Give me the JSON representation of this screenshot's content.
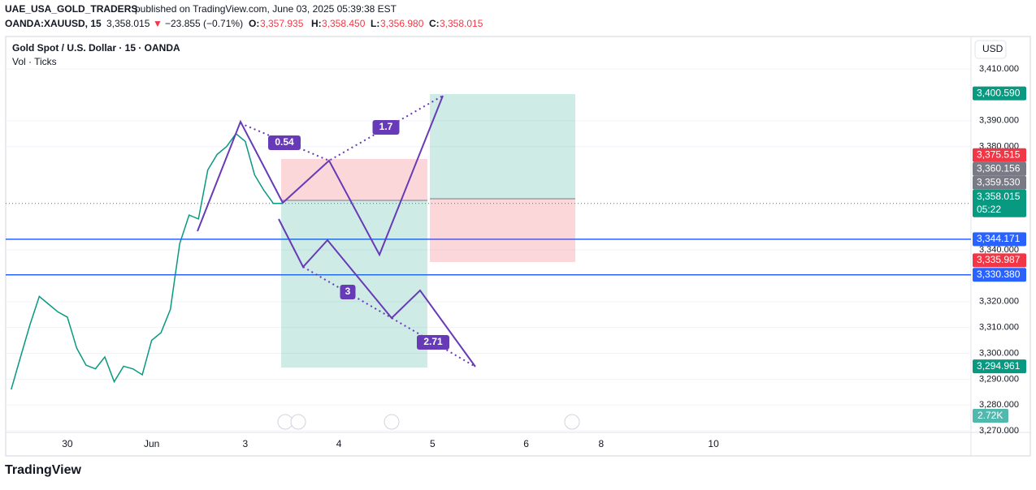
{
  "header": {
    "publisher": "UAE_USA_GOLD_TRADERS",
    "published": "published on TradingView.com, June 03, 2025 05:39:38 EST",
    "symbol": "OANDA:XAUUSD, 15",
    "last": "3,358.015",
    "arrow": "▼",
    "change": "−23.855 (−0.71%)",
    "o_key": "O:",
    "o": "3,357.935",
    "h_key": "H:",
    "h": "3,358.450",
    "l_key": "L:",
    "l": "3,356.980",
    "c_key": "C:",
    "c": "3,358.015"
  },
  "chart_data": {
    "type": "line",
    "title": "Gold Spot / U.S. Dollar · 15 · OANDA",
    "subtitle": "Vol · Ticks",
    "currency": "USD",
    "categories": [
      null,
      null,
      null,
      null,
      null,
      null,
      "30",
      null,
      null,
      null,
      null,
      null,
      null,
      null,
      null,
      "Jun",
      null,
      null,
      null,
      null,
      null,
      null,
      null,
      null,
      null,
      "3",
      null,
      null,
      null,
      null,
      null,
      null,
      null,
      null,
      null,
      "4",
      null,
      null,
      null,
      null,
      null,
      null,
      null,
      null,
      null,
      "5",
      null,
      null,
      null,
      null,
      null,
      null,
      null,
      null,
      null,
      "6",
      null,
      null,
      null,
      null,
      null,
      null,
      null,
      "8",
      null,
      null,
      null,
      null,
      null,
      null,
      null,
      null,
      null,
      null,
      null,
      "10",
      null,
      null,
      null,
      null,
      null,
      null,
      null,
      null,
      null,
      null,
      null,
      null,
      null,
      null,
      null,
      null,
      null,
      null,
      null,
      null,
      null,
      null,
      null,
      null,
      null,
      null,
      null
    ],
    "series": [
      {
        "name": "XAUUSD",
        "color": "#089981",
        "values": [
          3286,
          3298.6,
          3311,
          3322,
          3319,
          3316,
          3314,
          3302,
          3295.4,
          3294,
          3298.6,
          3289,
          3295,
          3294,
          3291.7,
          3305,
          3308,
          3317,
          3342.5,
          3353.5,
          3352,
          3371,
          3377,
          3380,
          3385,
          3382,
          3369,
          3363,
          3358,
          3358.015,
          null,
          null,
          null,
          null,
          null,
          null,
          null,
          null,
          null,
          null,
          null,
          null,
          null,
          null,
          null,
          null,
          null,
          null,
          null,
          null,
          null,
          null,
          null,
          null,
          null,
          null,
          null,
          null,
          null,
          null,
          null,
          null,
          null,
          null,
          null,
          null,
          null,
          null,
          null,
          null,
          null,
          null,
          null,
          null,
          null,
          null,
          null,
          null,
          null,
          null,
          null,
          null,
          null,
          null,
          null,
          null,
          null,
          null,
          null,
          null,
          null,
          null,
          null,
          null,
          null,
          null,
          null,
          null,
          null,
          null,
          null,
          null,
          null
        ]
      }
    ],
    "ylim": [
      3269.4,
      3422.6
    ],
    "yticks": [
      {
        "value": 3410,
        "label": "3,410.000"
      },
      {
        "value": 3390,
        "label": "3,390.000"
      },
      {
        "value": 3380,
        "label": "3,380.000"
      },
      {
        "value": 3340,
        "label": "3,340.000"
      },
      {
        "value": 3320,
        "label": "3,320.000"
      },
      {
        "value": 3310,
        "label": "3,310.000"
      },
      {
        "value": 3300,
        "label": "3,300.000"
      },
      {
        "value": 3290,
        "label": "3,290.000"
      },
      {
        "value": 3280,
        "label": "3,280.000"
      },
      {
        "value": 3270,
        "label": "3,270.000"
      }
    ],
    "grid": true,
    "annotations": [
      {
        "value": 3400.59,
        "label": "3,400.590",
        "color": "#089981"
      },
      {
        "value": 3375.515,
        "label": "3,375.515",
        "color": "#f23645"
      },
      {
        "value": 3360.156,
        "label": "3,360.156",
        "color": "#787b86"
      },
      {
        "value": 3359.53,
        "label": "3,359.530",
        "color": "#787b86"
      },
      {
        "value": 3358.015,
        "label": "3,358.015",
        "sublabel": "05:22",
        "color": "#089981",
        "style": "dotted"
      },
      {
        "value": 3344.171,
        "label": "3,344.171",
        "color": "#2962ff",
        "style": "line"
      },
      {
        "value": 3335.987,
        "label": "3,335.987",
        "color": "#f23645"
      },
      {
        "value": 3330.38,
        "label": "3,330.380",
        "color": "#2962ff",
        "style": "line"
      },
      {
        "value": 3294.961,
        "label": "3,294.961",
        "color": "#089981"
      }
    ],
    "volume_label": "2.72K",
    "pattern_labels": [
      0.54,
      1.7,
      3,
      2.71
    ]
  },
  "footer": {
    "brand": "TradingView"
  }
}
